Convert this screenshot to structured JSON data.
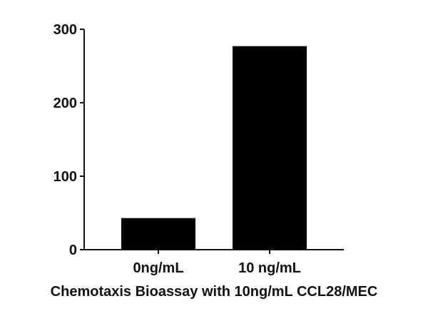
{
  "chart_data": {
    "type": "bar",
    "title": "Chemotaxis Bioassay with 10ng/mL CCL28/MEC",
    "xlabel": "",
    "ylabel": "",
    "categories": [
      "0ng/mL",
      "10 ng/mL"
    ],
    "values": [
      43,
      277
    ],
    "ylim": [
      0,
      300
    ],
    "yticks": [
      "0",
      "100",
      "200",
      "300"
    ],
    "bar_color": "#000000",
    "grid": false,
    "legend": null
  }
}
